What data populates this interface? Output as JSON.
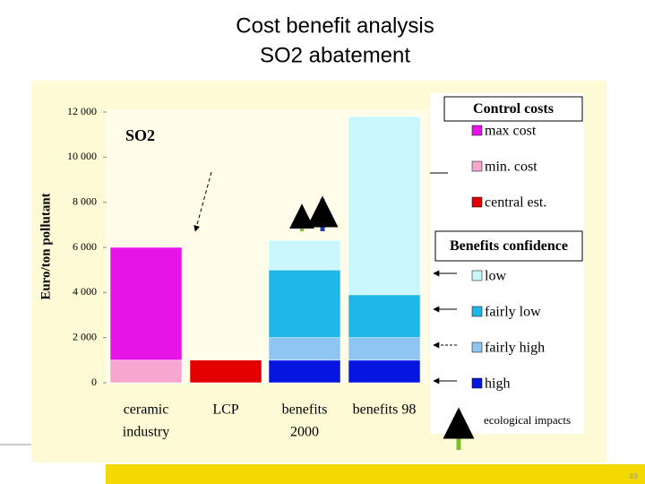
{
  "slide": {
    "title_lines": [
      "Cost benefit analysis",
      "SO2 abatement"
    ],
    "page_number": "49"
  },
  "chart_data": {
    "type": "stacked_bar",
    "y_label": "Euro/ton pollutant",
    "annotation": "SO2",
    "note": "ecological impacts",
    "categories": [
      [
        "ceramic",
        "industry"
      ],
      [
        "LCP"
      ],
      [
        "benefits",
        "2000"
      ],
      [
        "benefits 98"
      ]
    ],
    "ylim": [
      0,
      12000
    ],
    "yticks": [
      0,
      {
        "value": 2000,
        "label": "2 000"
      },
      {
        "value": 4000,
        "label": "4 000"
      },
      {
        "value": 6000,
        "label": "6 000"
      },
      {
        "value": 8000,
        "label": "8 000"
      },
      {
        "value": 10000,
        "label": "10 000"
      },
      {
        "value": 12000,
        "label": "12 000"
      }
    ],
    "legend_groups": [
      {
        "title": "Control costs",
        "series": [
          "max cost",
          "min. cost",
          "central est."
        ]
      },
      {
        "title": "Benefits confidence",
        "series": [
          "low",
          "fairly low",
          "fairly high",
          "high"
        ]
      }
    ],
    "series": [
      {
        "name": "max cost",
        "color": "#e614e6",
        "values": [
          5000,
          null,
          null,
          null
        ]
      },
      {
        "name": "min. cost",
        "color": "#f7a6cf",
        "values": [
          1000,
          null,
          null,
          null
        ]
      },
      {
        "name": "central est.",
        "color": "#e30000",
        "values": [
          null,
          1000,
          null,
          null
        ]
      },
      {
        "name": "low",
        "color": "#c9f7fd",
        "values": [
          null,
          null,
          1300,
          7900
        ]
      },
      {
        "name": "fairly low",
        "color": "#1fb6e8",
        "values": [
          null,
          null,
          3000,
          1900
        ]
      },
      {
        "name": "fairly high",
        "color": "#8fc6f1",
        "values": [
          null,
          null,
          1000,
          1000
        ]
      },
      {
        "name": "high",
        "color": "#0616e0",
        "values": [
          null,
          null,
          1000,
          1000
        ]
      }
    ]
  }
}
